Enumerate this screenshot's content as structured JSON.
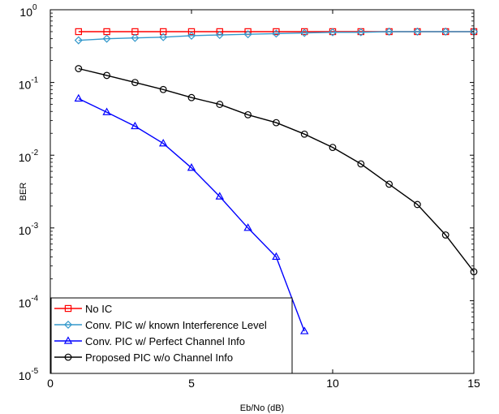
{
  "chart_data": {
    "type": "line",
    "title": "",
    "xlabel": "Eb/No (dB)",
    "ylabel": "BER",
    "xlim": [
      0,
      15
    ],
    "ylim": [
      1e-05,
      1
    ],
    "yscale": "log",
    "grid": false,
    "legend_position": "bottom-left",
    "x_ticks": [
      {
        "value": 0,
        "label": "0"
      },
      {
        "value": 5,
        "label": "5"
      },
      {
        "value": 10,
        "label": "10"
      },
      {
        "value": 15,
        "label": "15"
      }
    ],
    "y_ticks": [
      {
        "value": 1,
        "base": "10",
        "exp": "0"
      },
      {
        "value": 0.1,
        "base": "10",
        "exp": "-1"
      },
      {
        "value": 0.01,
        "base": "10",
        "exp": "-2"
      },
      {
        "value": 0.001,
        "base": "10",
        "exp": "-3"
      },
      {
        "value": 0.0001,
        "base": "10",
        "exp": "-4"
      },
      {
        "value": 1e-05,
        "base": "10",
        "exp": "-5"
      }
    ],
    "series": [
      {
        "name": "No IC",
        "color": "#ff0000",
        "marker": "square",
        "x": [
          1,
          2,
          3,
          4,
          5,
          6,
          7,
          8,
          9,
          10,
          11,
          12,
          13,
          14,
          15
        ],
        "y": [
          0.5,
          0.5,
          0.5,
          0.5,
          0.5,
          0.5,
          0.5,
          0.5,
          0.5,
          0.5,
          0.5,
          0.5,
          0.5,
          0.5,
          0.5
        ]
      },
      {
        "name": "Conv. PIC w/ known Interference Level",
        "color": "#3399cc",
        "marker": "diamond",
        "x": [
          1,
          2,
          3,
          4,
          5,
          6,
          7,
          8,
          9,
          10,
          11,
          12,
          13,
          14,
          15
        ],
        "y": [
          0.38,
          0.4,
          0.41,
          0.42,
          0.44,
          0.45,
          0.46,
          0.47,
          0.48,
          0.49,
          0.49,
          0.5,
          0.5,
          0.5,
          0.5
        ]
      },
      {
        "name": "Conv. PIC w/ Perfect Channel Info",
        "color": "#0000ff",
        "marker": "triangle",
        "x": [
          1,
          2,
          3,
          4,
          5,
          6,
          7,
          8,
          9
        ],
        "y": [
          0.06,
          0.039,
          0.025,
          0.0145,
          0.0067,
          0.0027,
          0.001,
          0.0004,
          3.8e-05
        ]
      },
      {
        "name": "Proposed PIC w/o Channel Info",
        "color": "#000000",
        "marker": "circle",
        "x": [
          1,
          2,
          3,
          4,
          5,
          6,
          7,
          8,
          9,
          10,
          11,
          12,
          13,
          14,
          15
        ],
        "y": [
          0.155,
          0.125,
          0.1,
          0.08,
          0.062,
          0.05,
          0.036,
          0.028,
          0.0195,
          0.0128,
          0.0076,
          0.004,
          0.0021,
          0.0008,
          0.00025
        ]
      }
    ]
  }
}
